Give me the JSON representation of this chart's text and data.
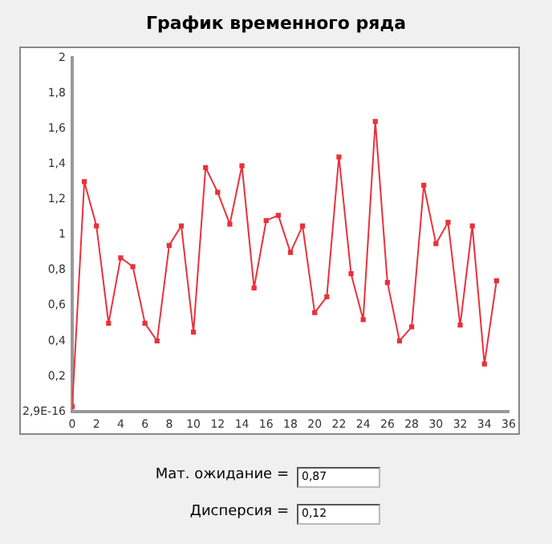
{
  "chart_data": {
    "type": "line",
    "title": "График временного ряда",
    "x": [
      0,
      1,
      2,
      3,
      4,
      5,
      6,
      7,
      8,
      9,
      10,
      11,
      12,
      13,
      14,
      15,
      16,
      17,
      18,
      19,
      20,
      21,
      22,
      23,
      24,
      25,
      26,
      27,
      28,
      29,
      30,
      31,
      32,
      33,
      34,
      35
    ],
    "series": [
      {
        "color": "#e8323c",
        "values": [
          0.03,
          1.3,
          1.05,
          0.5,
          0.87,
          0.82,
          0.5,
          0.4,
          0.94,
          1.05,
          0.45,
          1.38,
          1.24,
          1.06,
          1.39,
          0.7,
          1.08,
          1.11,
          0.9,
          1.05,
          0.56,
          0.65,
          1.44,
          0.78,
          0.52,
          1.64,
          0.73,
          0.4,
          0.48,
          1.28,
          0.95,
          1.07,
          0.49,
          1.05,
          0.27,
          0.74
        ]
      }
    ],
    "xlim": [
      0,
      36
    ],
    "xticks": [
      0,
      2,
      4,
      6,
      8,
      10,
      12,
      14,
      16,
      18,
      20,
      22,
      24,
      26,
      28,
      30,
      32,
      34,
      36
    ],
    "ylim": [
      0,
      2
    ],
    "yticks": [
      {
        "value": 0,
        "label": "2,9E-16"
      },
      {
        "value": 0.2,
        "label": "0,2"
      },
      {
        "value": 0.4,
        "label": "0,4"
      },
      {
        "value": 0.6,
        "label": "0,6"
      },
      {
        "value": 0.8,
        "label": "0,8"
      },
      {
        "value": 1,
        "label": "1"
      },
      {
        "value": 1.2,
        "label": "1,2"
      },
      {
        "value": 1.4,
        "label": "1,4"
      },
      {
        "value": 1.6,
        "label": "1,6"
      },
      {
        "value": 1.8,
        "label": "1,8"
      },
      {
        "value": 2,
        "label": "2"
      }
    ],
    "grid": false,
    "legend": false,
    "marker": "square",
    "line_style": "solid",
    "annotations": [
      "Мат. ожидание =",
      "0,87",
      "Дисперсия =",
      "0,12"
    ]
  }
}
